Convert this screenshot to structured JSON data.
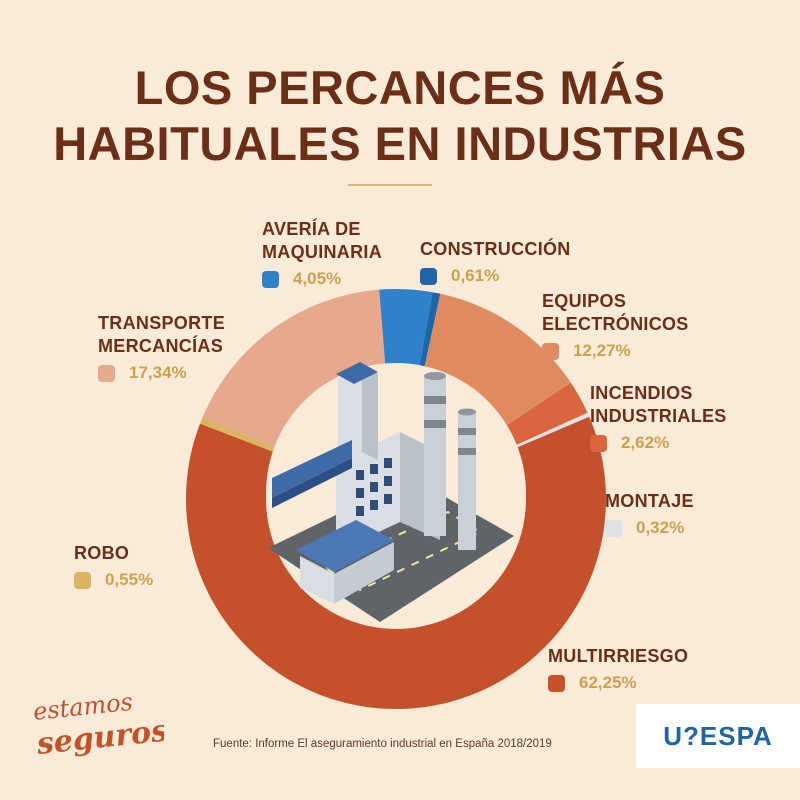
{
  "title_lines": [
    "LOS PERCANCES MÁS",
    "HABITUALES EN INDUSTRIAS"
  ],
  "source": "Fuente: Informe El aseguramiento industrial en España 2018/2019",
  "brand": "U?ESPA",
  "logo_text": "estamos seguros",
  "colors": {
    "background": "#f9ebd8",
    "title": "#6b2e16",
    "percent": "#c9a24e"
  },
  "chart_data": {
    "type": "pie",
    "style": "donut",
    "segments": [
      {
        "name_lines": [
          "CONSTRUCCIÓN"
        ],
        "value": 0.61,
        "label": "0,61%",
        "color": "#1e66a8"
      },
      {
        "name_lines": [
          "EQUIPOS",
          "ELECTRÓNICOS"
        ],
        "value": 12.27,
        "label": "12,27%",
        "color": "#e08a60"
      },
      {
        "name_lines": [
          "INCENDIOS",
          "INDUSTRIALES"
        ],
        "value": 2.62,
        "label": "2,62%",
        "color": "#d9663f"
      },
      {
        "name_lines": [
          "MONTAJE"
        ],
        "value": 0.32,
        "label": "0,32%",
        "color": "#dde2e6"
      },
      {
        "name_lines": [
          "MULTIRRIESGO"
        ],
        "value": 62.25,
        "label": "62,25%",
        "color": "#c4512a"
      },
      {
        "name_lines": [
          "ROBO"
        ],
        "value": 0.55,
        "label": "0,55%",
        "color": "#d9b563"
      },
      {
        "name_lines": [
          "TRANSPORTE",
          "MERCANCÍAS"
        ],
        "value": 17.34,
        "label": "17,34%",
        "color": "#e6a98b"
      },
      {
        "name_lines": [
          "AVERÍA DE",
          "MAQUINARIA"
        ],
        "value": 4.05,
        "label": "4,05%",
        "color": "#2f82c9"
      }
    ]
  }
}
